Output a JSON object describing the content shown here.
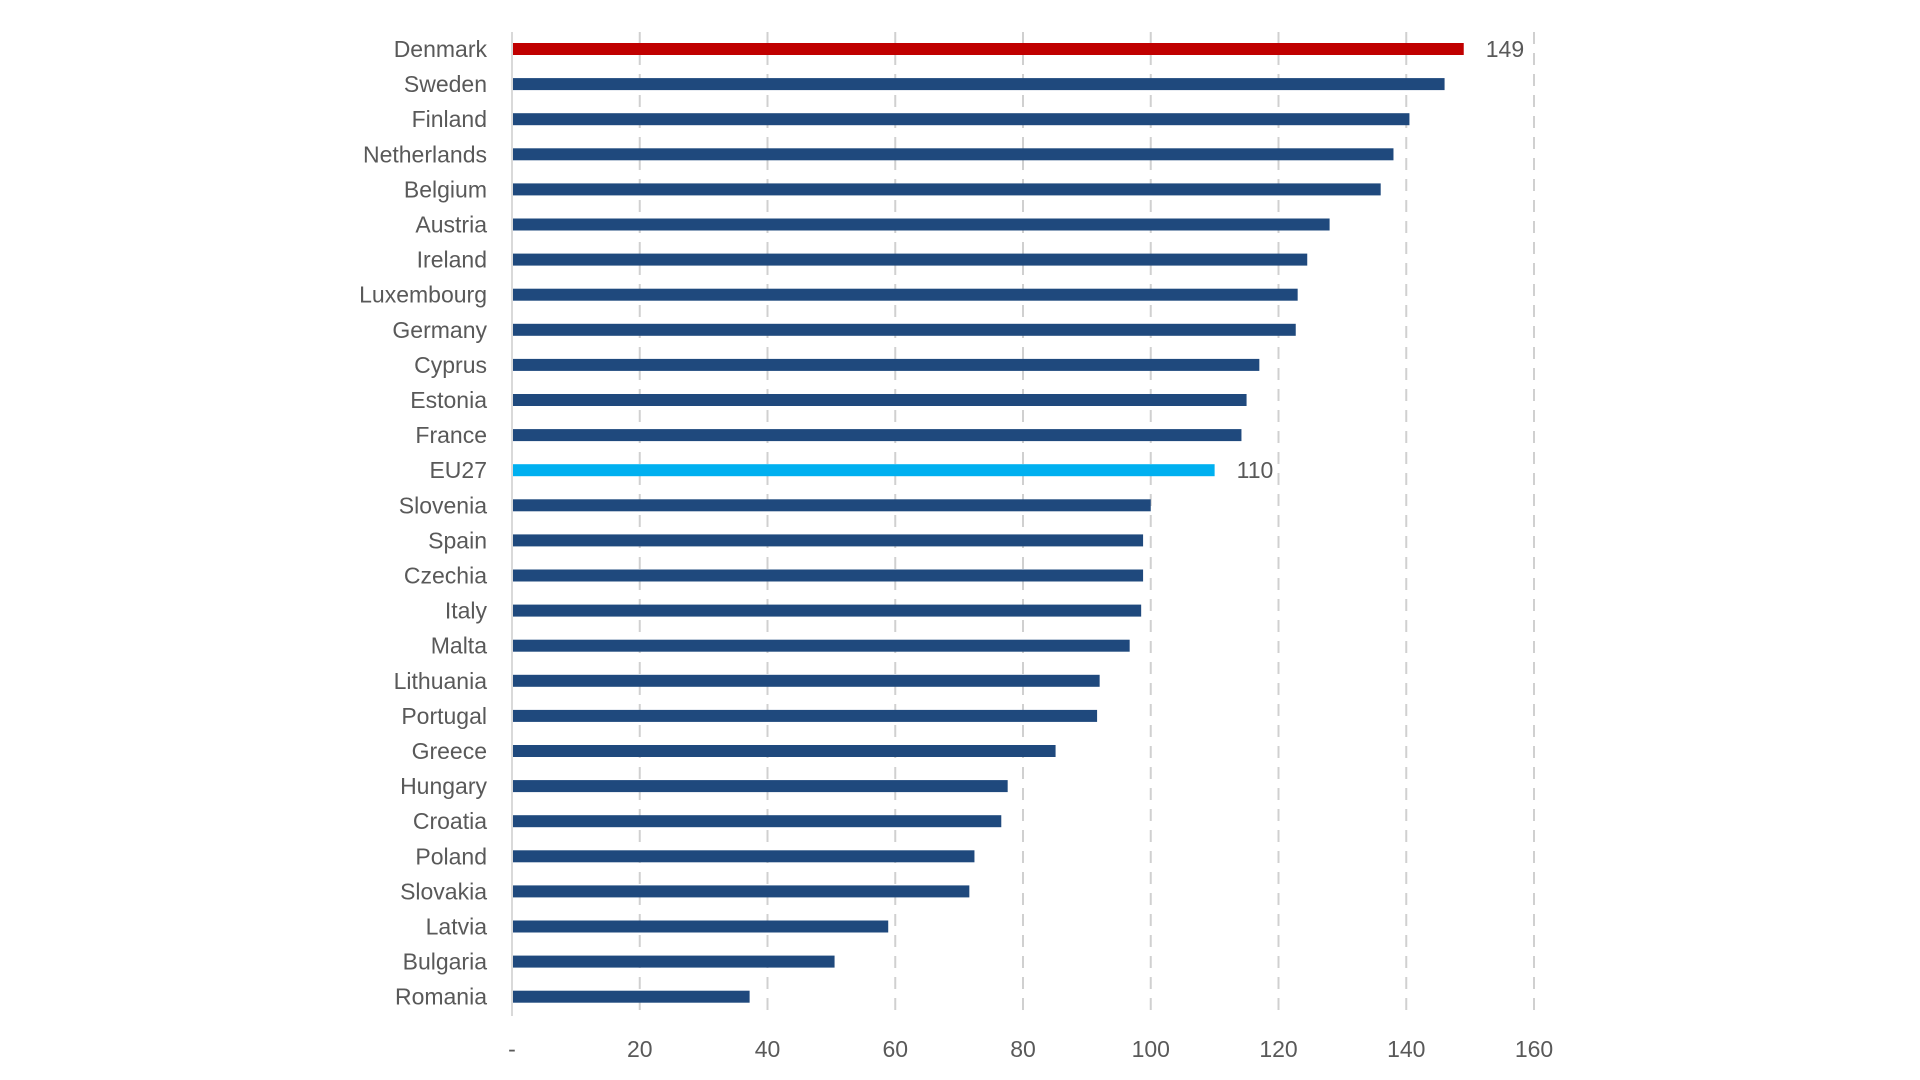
{
  "chart_data": {
    "type": "bar",
    "orientation": "horizontal",
    "title": "",
    "xlabel": "",
    "ylabel": "",
    "xlim": [
      0,
      160
    ],
    "x_ticks": [
      "-",
      "20",
      "40",
      "60",
      "80",
      "100",
      "120",
      "140",
      "160"
    ],
    "x_tick_values": [
      0,
      20,
      40,
      60,
      80,
      100,
      120,
      140,
      160
    ],
    "grid": "vertical dashed",
    "legend": "none",
    "categories": [
      "Denmark",
      "Sweden",
      "Finland",
      "Netherlands",
      "Belgium",
      "Austria",
      "Ireland",
      "Luxembourg",
      "Germany",
      "Cyprus",
      "Estonia",
      "France",
      "EU27",
      "Slovenia",
      "Spain",
      "Czechia",
      "Italy",
      "Malta",
      "Lithuania",
      "Portugal",
      "Greece",
      "Hungary",
      "Croatia",
      "Poland",
      "Slovakia",
      "Latvia",
      "Bulgaria",
      "Romania"
    ],
    "values": [
      149,
      146,
      140.5,
      138,
      136,
      128,
      124.5,
      123,
      122.7,
      117,
      115,
      114.2,
      110,
      100,
      98.8,
      98.8,
      98.5,
      96.7,
      92,
      91.6,
      85.1,
      77.6,
      76.6,
      72.4,
      71.6,
      58.9,
      50.5,
      37.2
    ],
    "data_labels": {
      "Denmark": "149",
      "EU27": "110"
    },
    "colors": {
      "default": "#1F497D",
      "Denmark": "#C00000",
      "EU27": "#00B0F0",
      "text": "#595959",
      "grid": "#D0D0D0"
    }
  }
}
